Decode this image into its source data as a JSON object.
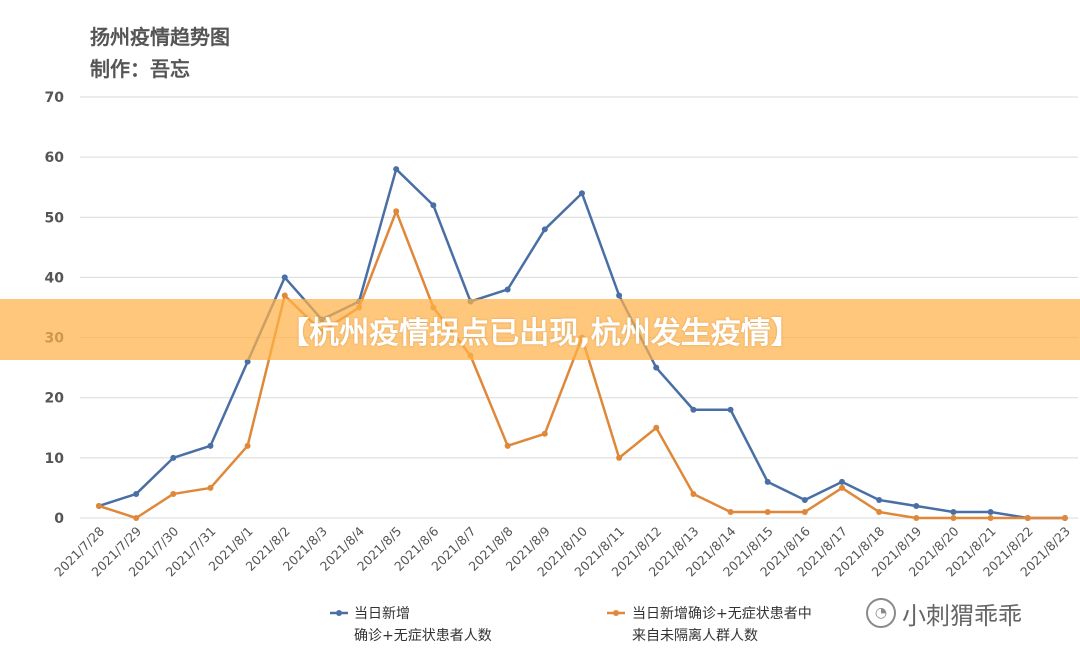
{
  "chart_data": {
    "type": "line",
    "title": "扬州疫情趋势图",
    "subtitle": "制作：吾忘",
    "x": [
      "2021/7/28",
      "2021/7/29",
      "2021/7/30",
      "2021/7/31",
      "2021/8/1",
      "2021/8/2",
      "2021/8/3",
      "2021/8/4",
      "2021/8/5",
      "2021/8/6",
      "2021/8/7",
      "2021/8/8",
      "2021/8/9",
      "2021/8/10",
      "2021/8/11",
      "2021/8/12",
      "2021/8/13",
      "2021/8/14",
      "2021/8/15",
      "2021/8/16",
      "2021/8/17",
      "2021/8/18",
      "2021/8/19",
      "2021/8/20",
      "2021/8/21",
      "2021/8/22",
      "2021/8/23"
    ],
    "ylim": [
      0,
      70
    ],
    "yticks": [
      0,
      10,
      20,
      30,
      40,
      50,
      60,
      70
    ],
    "grid": true,
    "legend_position": "bottom",
    "series": [
      {
        "name": "当日新增\n确诊+无症状患者人数",
        "color": "#4a6fa5",
        "values": [
          2,
          4,
          10,
          12,
          26,
          40,
          33,
          36,
          58,
          52,
          36,
          38,
          48,
          54,
          37,
          25,
          18,
          18,
          6,
          3,
          6,
          3,
          2,
          1,
          1,
          0,
          0
        ]
      },
      {
        "name": "当日新增确诊+无症状患者中\n来自未隔离人群人数",
        "color": "#e0883a",
        "values": [
          2,
          0,
          4,
          5,
          12,
          37,
          31,
          35,
          51,
          35,
          27,
          12,
          14,
          30,
          10,
          15,
          4,
          1,
          1,
          1,
          5,
          1,
          0,
          0,
          0,
          0,
          0
        ]
      }
    ]
  },
  "banner": {
    "text": "【杭州疫情拐点已出现,杭州发生疫情】"
  },
  "watermark": {
    "text": "小刺猬乖乖",
    "icon": "wechat-icon"
  }
}
